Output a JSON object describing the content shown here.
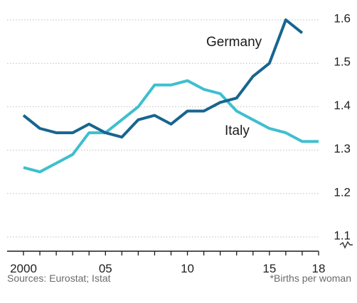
{
  "chart_data": {
    "type": "line",
    "title": "",
    "xlabel": "",
    "ylabel": "",
    "x": [
      2000,
      2001,
      2002,
      2003,
      2004,
      2005,
      2006,
      2007,
      2008,
      2009,
      2010,
      2011,
      2012,
      2013,
      2014,
      2015,
      2016,
      2017,
      2018
    ],
    "x_tick_labels": [
      {
        "x": 2000,
        "label": "2000"
      },
      {
        "x": 2005,
        "label": "05"
      },
      {
        "x": 2010,
        "label": "10"
      },
      {
        "x": 2015,
        "label": "15"
      },
      {
        "x": 2018,
        "label": "18"
      }
    ],
    "y_ticks": [
      {
        "y": 1.1,
        "label": "1.1"
      },
      {
        "y": 1.2,
        "label": "1.2"
      },
      {
        "y": 1.3,
        "label": "1.3"
      },
      {
        "y": 1.4,
        "label": "1.4"
      },
      {
        "y": 1.5,
        "label": "1.5"
      },
      {
        "y": 1.6,
        "label": "1.6"
      }
    ],
    "ylim": [
      1.1,
      1.6
    ],
    "y_axis_side": "right",
    "y_axis_break": true,
    "grid": "horizontal dotted",
    "legend": "inline labels",
    "series": [
      {
        "name": "Germany",
        "color": "#17658f",
        "x": [
          2000,
          2001,
          2002,
          2003,
          2004,
          2005,
          2006,
          2007,
          2008,
          2009,
          2010,
          2011,
          2012,
          2013,
          2014,
          2015,
          2016,
          2017
        ],
        "values": [
          1.38,
          1.35,
          1.34,
          1.34,
          1.36,
          1.34,
          1.33,
          1.37,
          1.38,
          1.36,
          1.39,
          1.39,
          1.41,
          1.42,
          1.47,
          1.5,
          1.6,
          1.57
        ]
      },
      {
        "name": "Italy",
        "color": "#3ebfcf",
        "x": [
          2000,
          2001,
          2002,
          2003,
          2004,
          2005,
          2006,
          2007,
          2008,
          2009,
          2010,
          2011,
          2012,
          2013,
          2014,
          2015,
          2016,
          2017,
          2018
        ],
        "values": [
          1.26,
          1.25,
          1.27,
          1.29,
          1.34,
          1.34,
          1.37,
          1.4,
          1.45,
          1.45,
          1.46,
          1.44,
          1.43,
          1.39,
          1.37,
          1.35,
          1.34,
          1.32,
          1.32
        ]
      }
    ]
  },
  "footer": {
    "source": "Sources: Eurostat; Istat",
    "note": "*Births per woman"
  }
}
